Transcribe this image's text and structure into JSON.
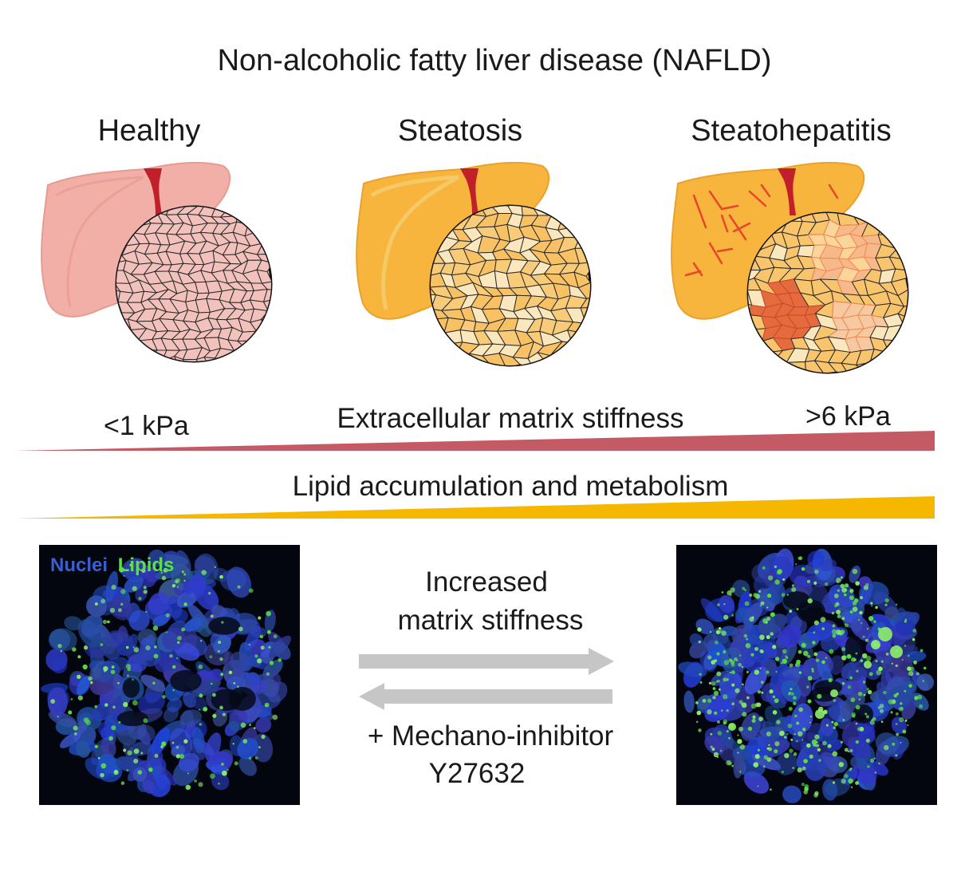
{
  "title": "Non-alcoholic fatty liver disease (NAFLD)",
  "stages": [
    {
      "label": "Healthy"
    },
    {
      "label": "Steatosis"
    },
    {
      "label": "Steatohepatitis"
    }
  ],
  "stiffness": {
    "low": "<1 kPa",
    "label": "Extracellular matrix stiffness",
    "high": ">6 kPa",
    "color": "#c45a63"
  },
  "lipid": {
    "label": "Lipid accumulation and metabolism",
    "color": "#f6b700"
  },
  "micrographs": {
    "legend_nuclei": "Nuclei",
    "legend_lipids": "Lipids",
    "nuclei_color": "#3a5fd0",
    "lipid_color": "#5ce046"
  },
  "arrows": {
    "forward_label_line1": "Increased",
    "forward_label_line2": "matrix stiffness",
    "reverse_label_line1": "+ Mechano-inhibitor",
    "reverse_label_line2": "Y27632",
    "color": "#c6c6c6"
  },
  "liver_colors": {
    "healthy": "#f1afa8",
    "steatosis": "#f8b53d",
    "steatohepatitis": "#f8b53d",
    "vessel": "#c1202a",
    "fibrosis": "#e8452c"
  }
}
